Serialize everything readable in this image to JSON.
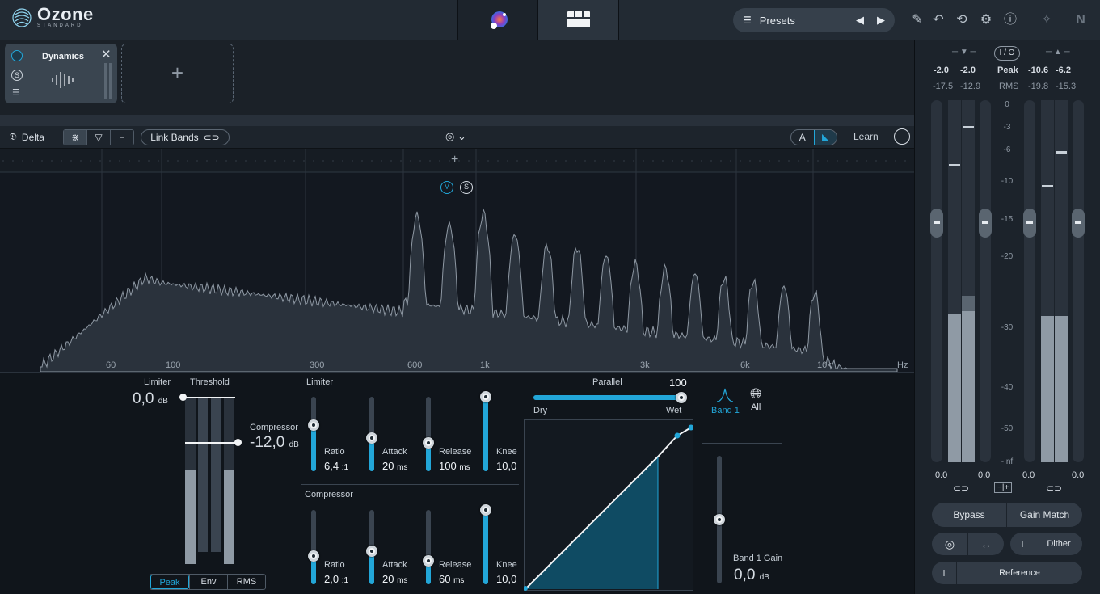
{
  "app": {
    "logo_name": "Ozone",
    "logo_sub": "STANDARD"
  },
  "topbar": {
    "presets_label": "Presets"
  },
  "chain": {
    "module_name": "Dynamics",
    "add_symbol": "+"
  },
  "toolbar": {
    "delta": "Delta",
    "link_bands": "Link Bands",
    "ab_a": "A",
    "learn": "Learn"
  },
  "spectrum": {
    "freq_labels": [
      {
        "text": "60",
        "x": 131
      },
      {
        "text": "100",
        "x": 205
      },
      {
        "text": "300",
        "x": 383
      },
      {
        "text": "600",
        "x": 504
      },
      {
        "text": "1k",
        "x": 594
      },
      {
        "text": "3k",
        "x": 792
      },
      {
        "text": "6k",
        "x": 916
      },
      {
        "text": "10k",
        "x": 1011
      },
      {
        "text": "Hz",
        "x": 1110
      }
    ],
    "band_m": "M",
    "band_s": "S"
  },
  "threshold": {
    "limiter_label": "Limiter",
    "threshold_label": "Threshold",
    "limiter_value": "0,0",
    "limiter_unit": "dB",
    "compressor_label": "Compressor",
    "compressor_value": "-12,0",
    "compressor_unit": "dB",
    "modes": [
      "Peak",
      "Env",
      "RMS"
    ]
  },
  "limiter_section": {
    "title": "Limiter",
    "ratio": {
      "label": "Ratio",
      "value": "6,4",
      "unit": ":1",
      "level": 0.62
    },
    "attack": {
      "label": "Attack",
      "value": "20",
      "unit": "ms",
      "level": 0.45
    },
    "release": {
      "label": "Release",
      "value": "100",
      "unit": "ms",
      "level": 0.38
    },
    "knee": {
      "label": "Knee",
      "value": "10,0",
      "unit": "",
      "level": 1.0
    }
  },
  "compressor_section": {
    "title": "Compressor",
    "ratio": {
      "label": "Ratio",
      "value": "2,0",
      "unit": ":1",
      "level": 0.38
    },
    "attack": {
      "label": "Attack",
      "value": "20",
      "unit": "ms",
      "level": 0.45
    },
    "release": {
      "label": "Release",
      "value": "60",
      "unit": "ms",
      "level": 0.32
    },
    "knee": {
      "label": "Knee",
      "value": "10,0",
      "unit": "",
      "level": 1.0
    }
  },
  "parallel": {
    "label": "Parallel",
    "value": "100",
    "dry": "Dry",
    "wet": "Wet",
    "level": 1.0
  },
  "bands": {
    "band1": "Band 1",
    "all": "All",
    "gain_label": "Band 1 Gain",
    "gain_value": "0,0",
    "gain_unit": "dB",
    "gain_level": 0.5
  },
  "meters": {
    "in_peak": [
      "-2.0",
      "-2.0"
    ],
    "in_rms": [
      "-17.5",
      "-12.9"
    ],
    "io_label": "I / O",
    "peak_label": "Peak",
    "rms_label": "RMS",
    "out_peak": [
      "-10.6",
      "-6.2"
    ],
    "out_rms": [
      "-19.8",
      "-15.3"
    ],
    "scale": [
      "0",
      "-3",
      "-6",
      "-10",
      "-15",
      "-20",
      "-30",
      "-40",
      "-50",
      "-Inf"
    ],
    "bottom_values": [
      "0.0",
      "0.0",
      "0.0",
      "0.0"
    ]
  },
  "footer_buttons": {
    "bypass": "Bypass",
    "gain_match": "Gain Match",
    "dither": "Dither",
    "reference": "Reference"
  },
  "colors": {
    "accent": "#22a6d8",
    "panel": "#1c232b",
    "spectrum_fill": "#2c3540"
  }
}
